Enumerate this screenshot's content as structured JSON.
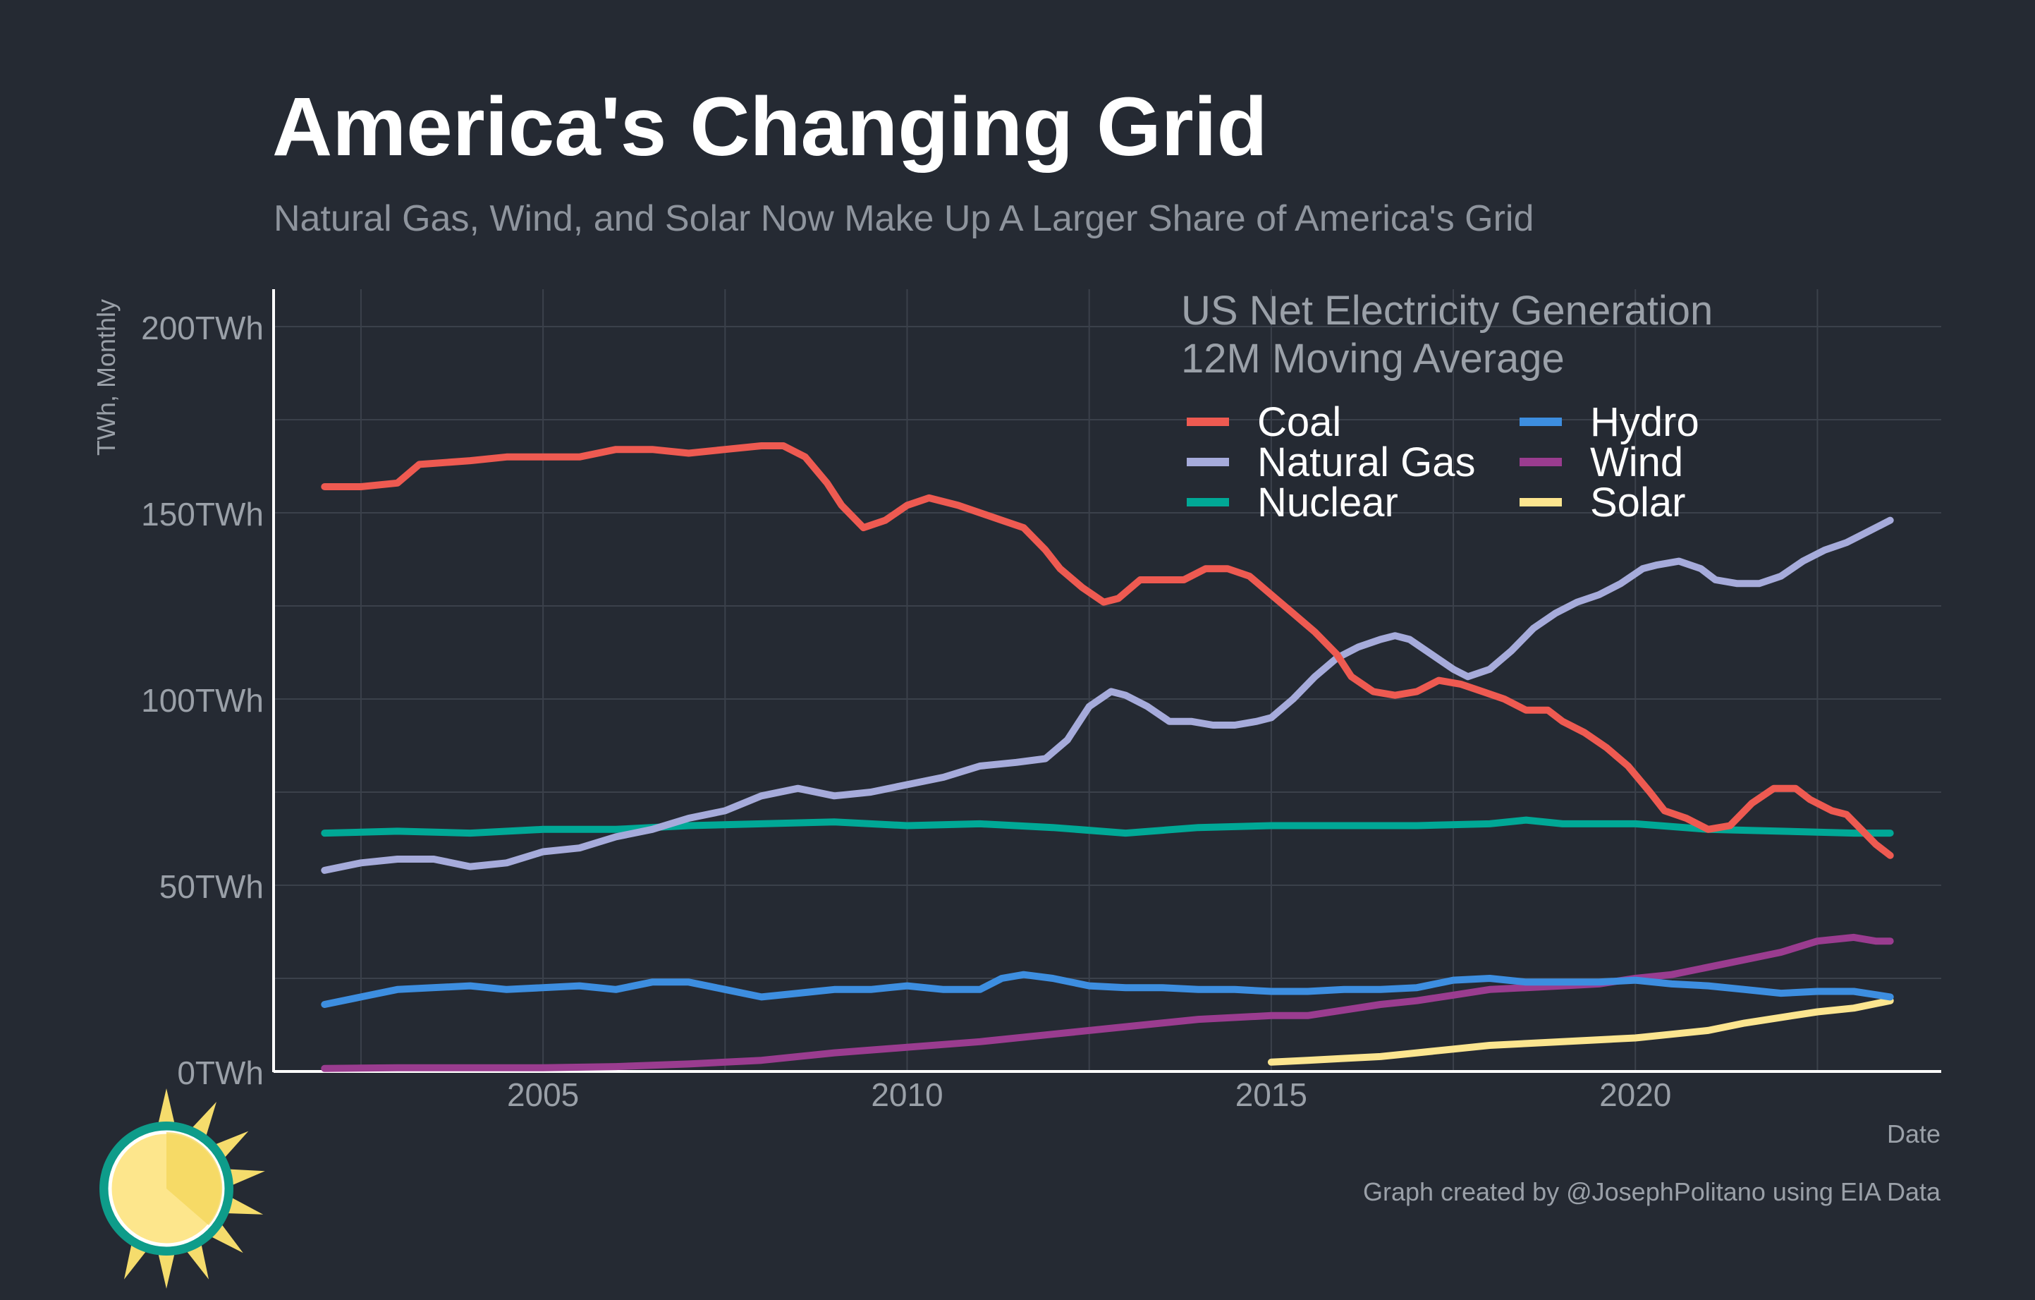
{
  "chart_data": {
    "type": "line",
    "title": "America's Changing Grid",
    "subtitle": "Natural Gas, Wind, and Solar Now Make Up A Larger Share of America's Grid",
    "legend_title_line1": "US Net Electricity Generation",
    "legend_title_line2": "12M Moving Average",
    "legend_placement": "top-right",
    "xlabel": "Date",
    "ylabel": "TWh, Monthly",
    "caption": "Graph created by @JosephPolitano using EIA Data",
    "xlim": [
      2001.3,
      2024.2
    ],
    "ylim": [
      0,
      200
    ],
    "grid": true,
    "x_ticks": [
      {
        "value": 2005,
        "label": "2005"
      },
      {
        "value": 2010,
        "label": "2010"
      },
      {
        "value": 2015,
        "label": "2015"
      },
      {
        "value": 2020,
        "label": "2020"
      }
    ],
    "y_ticks": [
      {
        "value": 0,
        "label": "0TWh"
      },
      {
        "value": 50,
        "label": "50TWh"
      },
      {
        "value": 100,
        "label": "100TWh"
      },
      {
        "value": 150,
        "label": "150TWh"
      },
      {
        "value": 200,
        "label": "200TWh"
      }
    ],
    "series": [
      {
        "name": "Coal",
        "color": "#ee5a51",
        "x": [
          2002.0,
          2002.5,
          2003.0,
          2003.3,
          2004.0,
          2004.5,
          2005.0,
          2005.5,
          2006.0,
          2006.5,
          2007.0,
          2007.5,
          2008.0,
          2008.3,
          2008.6,
          2008.9,
          2009.1,
          2009.4,
          2009.7,
          2010.0,
          2010.3,
          2010.7,
          2011.0,
          2011.3,
          2011.6,
          2011.9,
          2012.1,
          2012.4,
          2012.7,
          2012.9,
          2013.2,
          2013.5,
          2013.8,
          2014.1,
          2014.4,
          2014.7,
          2015.0,
          2015.3,
          2015.6,
          2015.9,
          2016.1,
          2016.4,
          2016.7,
          2017.0,
          2017.3,
          2017.6,
          2017.9,
          2018.2,
          2018.5,
          2018.8,
          2019.0,
          2019.3,
          2019.6,
          2019.9,
          2020.2,
          2020.4,
          2020.7,
          2021.0,
          2021.3,
          2021.6,
          2021.9,
          2022.2,
          2022.4,
          2022.7,
          2022.9,
          2023.1,
          2023.3,
          2023.5
        ],
        "y": [
          157,
          157,
          158,
          163,
          164,
          165,
          165,
          165,
          167,
          167,
          166,
          167,
          168,
          168,
          165,
          158,
          152,
          146,
          148,
          152,
          154,
          152,
          150,
          148,
          146,
          140,
          135,
          130,
          126,
          127,
          132,
          132,
          132,
          135,
          135,
          133,
          128,
          123,
          118,
          112,
          106,
          102,
          101,
          102,
          105,
          104,
          102,
          100,
          97,
          97,
          94,
          91,
          87,
          82,
          75,
          70,
          68,
          65,
          66,
          72,
          76,
          76,
          73,
          70,
          69,
          65,
          61,
          58
        ]
      },
      {
        "name": "Natural Gas",
        "color": "#a6abdb",
        "x": [
          2002.0,
          2002.5,
          2003.0,
          2003.5,
          2004.0,
          2004.5,
          2005.0,
          2005.5,
          2006.0,
          2006.5,
          2007.0,
          2007.5,
          2008.0,
          2008.5,
          2009.0,
          2009.5,
          2010.0,
          2010.5,
          2011.0,
          2011.5,
          2011.9,
          2012.2,
          2012.5,
          2012.8,
          2013.0,
          2013.3,
          2013.6,
          2013.9,
          2014.2,
          2014.5,
          2014.8,
          2015.0,
          2015.3,
          2015.6,
          2015.9,
          2016.2,
          2016.5,
          2016.7,
          2016.9,
          2017.2,
          2017.5,
          2017.7,
          2018.0,
          2018.3,
          2018.6,
          2018.9,
          2019.2,
          2019.5,
          2019.8,
          2020.1,
          2020.3,
          2020.6,
          2020.9,
          2021.1,
          2021.4,
          2021.7,
          2022.0,
          2022.3,
          2022.6,
          2022.9,
          2023.2,
          2023.5
        ],
        "y": [
          54,
          56,
          57,
          57,
          55,
          56,
          59,
          60,
          63,
          65,
          68,
          70,
          74,
          76,
          74,
          75,
          77,
          79,
          82,
          83,
          84,
          89,
          98,
          102,
          101,
          98,
          94,
          94,
          93,
          93,
          94,
          95,
          100,
          106,
          111,
          114,
          116,
          117,
          116,
          112,
          108,
          106,
          108,
          113,
          119,
          123,
          126,
          128,
          131,
          135,
          136,
          137,
          135,
          132,
          131,
          131,
          133,
          137,
          140,
          142,
          145,
          148
        ]
      },
      {
        "name": "Nuclear",
        "color": "#00a896",
        "x": [
          2002.0,
          2003.0,
          2004.0,
          2005.0,
          2006.0,
          2007.0,
          2008.0,
          2009.0,
          2010.0,
          2011.0,
          2012.0,
          2013.0,
          2014.0,
          2015.0,
          2016.0,
          2017.0,
          2018.0,
          2018.5,
          2019.0,
          2020.0,
          2021.0,
          2022.0,
          2023.0,
          2023.5
        ],
        "y": [
          64,
          64.5,
          64,
          65,
          65,
          66,
          66.5,
          67,
          66,
          66.5,
          65.5,
          64,
          65.5,
          66,
          66,
          66,
          66.5,
          67.5,
          66.5,
          66.5,
          65,
          64.5,
          64,
          64
        ]
      },
      {
        "name": "Hydro",
        "color": "#3d8ee0",
        "x": [
          2002.0,
          2002.5,
          2003.0,
          2004.0,
          2004.5,
          2005.5,
          2006.0,
          2006.5,
          2007.0,
          2007.5,
          2008.0,
          2008.5,
          2009.0,
          2009.5,
          2010.0,
          2010.5,
          2011.0,
          2011.3,
          2011.6,
          2012.0,
          2012.5,
          2013.0,
          2013.5,
          2014.0,
          2014.5,
          2015.0,
          2015.5,
          2016.0,
          2016.5,
          2017.0,
          2017.5,
          2018.0,
          2018.5,
          2019.0,
          2019.5,
          2020.0,
          2020.5,
          2021.0,
          2021.5,
          2022.0,
          2022.5,
          2023.0,
          2023.5
        ],
        "y": [
          18,
          20,
          22,
          23,
          22,
          23,
          22,
          24,
          24,
          22,
          20,
          21,
          22,
          22,
          23,
          22,
          22,
          25,
          26,
          25,
          23,
          22.5,
          22.5,
          22,
          22,
          21.5,
          21.5,
          22,
          22,
          22.5,
          24.5,
          25,
          24,
          24,
          24,
          24.5,
          23.5,
          23,
          22,
          21,
          21.5,
          21.5,
          20
        ]
      },
      {
        "name": "Wind",
        "color": "#9a3c8f",
        "x": [
          2002.0,
          2003.0,
          2004.0,
          2005.0,
          2006.0,
          2007.0,
          2008.0,
          2009.0,
          2010.0,
          2011.0,
          2012.0,
          2013.0,
          2014.0,
          2015.0,
          2015.5,
          2016.0,
          2016.5,
          2017.0,
          2017.5,
          2018.0,
          2018.5,
          2019.0,
          2019.5,
          2020.0,
          2020.5,
          2021.0,
          2021.5,
          2022.0,
          2022.5,
          2023.0,
          2023.3,
          2023.5
        ],
        "y": [
          0.8,
          1,
          1,
          1,
          1.3,
          2,
          3,
          5,
          6.5,
          8,
          10,
          12,
          14,
          15,
          15,
          16.5,
          18,
          19,
          20.5,
          22,
          22.5,
          23,
          23.5,
          25,
          26,
          28,
          30,
          32,
          35,
          36,
          35,
          35
        ]
      },
      {
        "name": "Solar",
        "color": "#fce58f",
        "x": [
          2015.0,
          2015.5,
          2016.0,
          2016.5,
          2017.0,
          2017.5,
          2018.0,
          2018.5,
          2019.0,
          2019.5,
          2020.0,
          2020.5,
          2021.0,
          2021.5,
          2022.0,
          2022.5,
          2023.0,
          2023.5
        ],
        "y": [
          2.5,
          3,
          3.5,
          4,
          5,
          6,
          7,
          7.5,
          8,
          8.5,
          9,
          10,
          11,
          13,
          14.5,
          16,
          17,
          19
        ]
      }
    ]
  }
}
